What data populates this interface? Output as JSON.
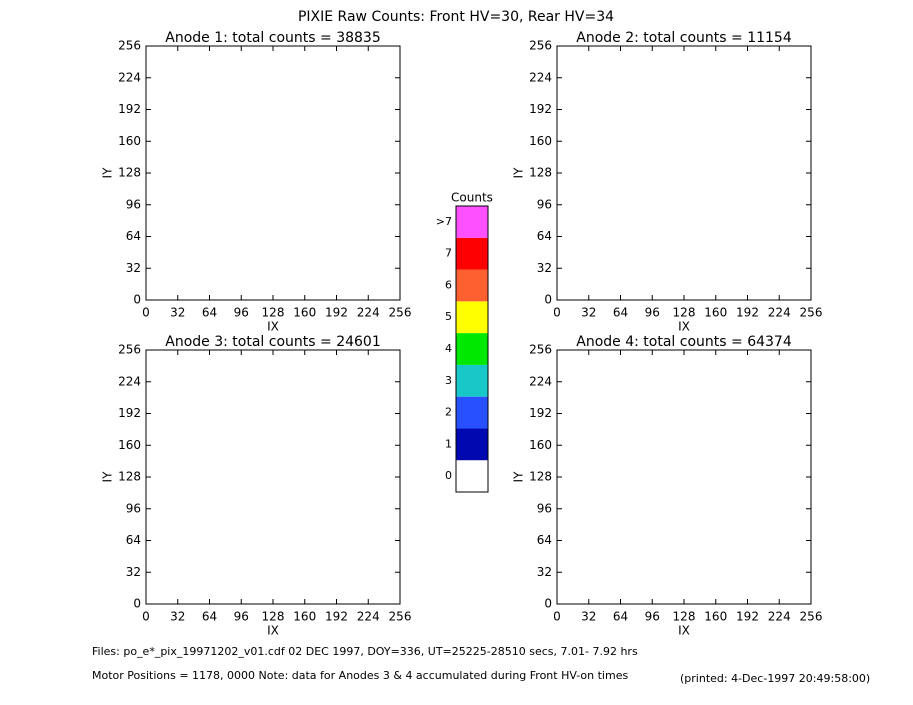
{
  "title": "PIXIE Raw Counts:  Front HV=30, Rear HV=34",
  "chart_data": [
    {
      "type": "heatmap",
      "title": "Anode 1: total counts = 38835",
      "xlabel": "IX",
      "ylabel": "IY",
      "xlim": [
        0,
        256
      ],
      "ylim": [
        0,
        256
      ],
      "xticks": [
        0,
        32,
        64,
        96,
        128,
        160,
        192,
        224,
        256
      ],
      "yticks": [
        0,
        32,
        64,
        96,
        128,
        160,
        192,
        224,
        256
      ]
    },
    {
      "type": "heatmap",
      "title": "Anode 2: total counts = 11154",
      "xlabel": "IX",
      "ylabel": "IY",
      "xlim": [
        0,
        256
      ],
      "ylim": [
        0,
        256
      ],
      "xticks": [
        0,
        32,
        64,
        96,
        128,
        160,
        192,
        224,
        256
      ],
      "yticks": [
        0,
        32,
        64,
        96,
        128,
        160,
        192,
        224,
        256
      ]
    },
    {
      "type": "heatmap",
      "title": "Anode 3: total counts = 24601",
      "xlabel": "IX",
      "ylabel": "IY",
      "xlim": [
        0,
        256
      ],
      "ylim": [
        0,
        256
      ],
      "xticks": [
        0,
        32,
        64,
        96,
        128,
        160,
        192,
        224,
        256
      ],
      "yticks": [
        0,
        32,
        64,
        96,
        128,
        160,
        192,
        224,
        256
      ]
    },
    {
      "type": "heatmap",
      "title": "Anode 4: total counts = 64374",
      "xlabel": "IX",
      "ylabel": "IY",
      "xlim": [
        0,
        256
      ],
      "ylim": [
        0,
        256
      ],
      "xticks": [
        0,
        32,
        64,
        96,
        128,
        160,
        192,
        224,
        256
      ],
      "yticks": [
        0,
        32,
        64,
        96,
        128,
        160,
        192,
        224,
        256
      ]
    }
  ],
  "colorbar": {
    "title": "Counts",
    "levels": [
      {
        "label": "0",
        "color": "#ffffff"
      },
      {
        "label": "1",
        "color": "#0008b0"
      },
      {
        "label": "2",
        "color": "#2850ff"
      },
      {
        "label": "3",
        "color": "#18c8c8"
      },
      {
        "label": "4",
        "color": "#00e800"
      },
      {
        "label": "5",
        "color": "#ffff00"
      },
      {
        "label": "6",
        "color": "#ff6030"
      },
      {
        "label": "7",
        "color": "#ff0000"
      },
      {
        "label": ">7",
        "color": "#ff50ff"
      }
    ]
  },
  "footer": {
    "files": "Files: po_e*_pix_19971202_v01.cdf    02 DEC 1997, DOY=336, UT=25225-28510 secs,  7.01- 7.92 hrs",
    "motor": "Motor Positions = 1178, 0000    Note: data for Anodes 3 & 4 accumulated during Front HV-on times",
    "printed": "(printed:  4-Dec-1997 20:49:58:00)"
  }
}
